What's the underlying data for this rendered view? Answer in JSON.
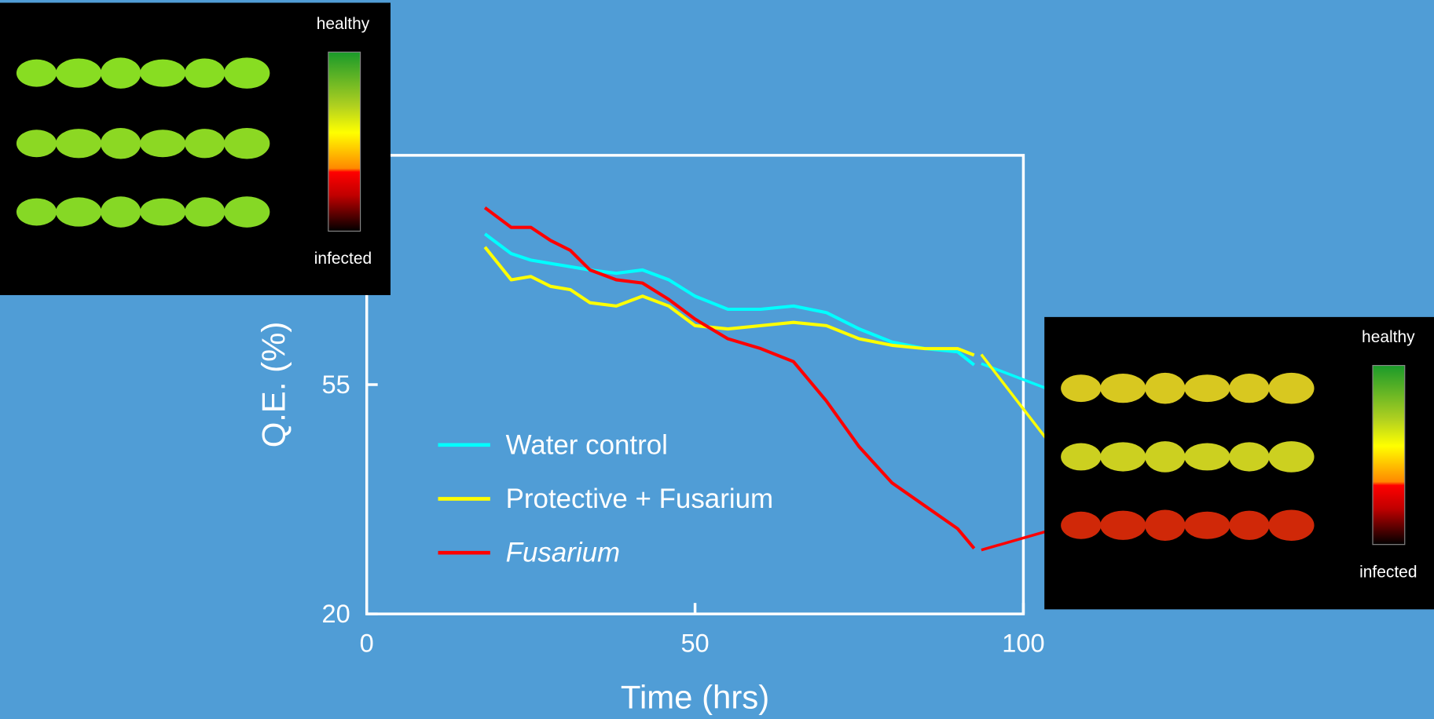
{
  "chart_data": {
    "type": "line",
    "x_label": "Time (hrs)",
    "y_label": "Q.E. (%)",
    "xlim": [
      0,
      100
    ],
    "xticks": [
      0,
      50,
      100
    ],
    "ylim": [
      20,
      90
    ],
    "yticks": [
      20,
      55
    ],
    "x": [
      18,
      22,
      25,
      28,
      31,
      34,
      38,
      42,
      46,
      50,
      55,
      60,
      65,
      70,
      75,
      80,
      85,
      90,
      92.5
    ],
    "series": [
      {
        "name": "Water control",
        "color": "#00ffff",
        "values": [
          78,
          75,
          74,
          73.5,
          73,
          72.5,
          72,
          72.5,
          71,
          68.5,
          66.5,
          66.5,
          67,
          66,
          63.5,
          61.5,
          60.5,
          60,
          58
        ]
      },
      {
        "name": "Protective + Fusarium",
        "color": "#ffff00",
        "values": [
          76,
          71,
          71.5,
          70,
          69.5,
          67.5,
          67,
          68.5,
          67,
          64,
          63.5,
          64,
          64.5,
          64,
          62,
          61,
          60.5,
          60.5,
          59.5
        ]
      },
      {
        "name": "Fusarium",
        "color": "#ff0000",
        "values": [
          82,
          79,
          79,
          77,
          75.5,
          72.5,
          71,
          70.5,
          68,
          65,
          62,
          60.5,
          58.5,
          52.5,
          45.5,
          40,
          36.5,
          33,
          30
        ]
      }
    ]
  },
  "images": [
    {
      "top_label": "healthy",
      "bottom_label": "infected"
    },
    {
      "top_label": "healthy",
      "bottom_label": "infected"
    }
  ]
}
